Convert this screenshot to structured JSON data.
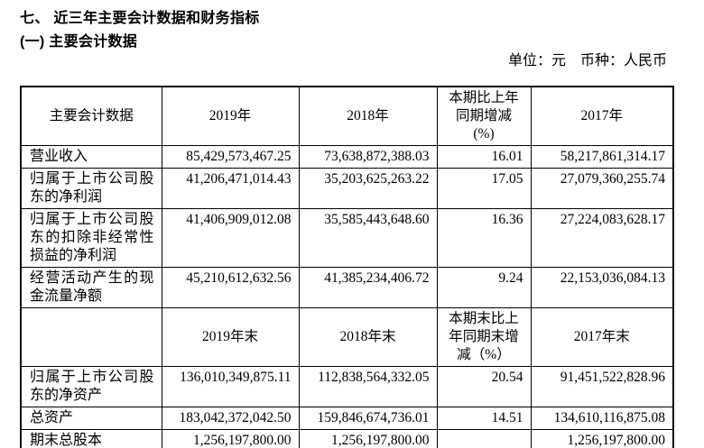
{
  "page": {
    "title": "七、 近三年主要会计数据和财务指标",
    "subtitle": "(一) 主要会计数据",
    "unit_note": "单位：元　币种：人民币"
  },
  "table": {
    "sections": [
      {
        "header": [
          "主要会计数据",
          "2019年",
          "2018年",
          "本期比上年\n同期增减\n(%)",
          "2017年"
        ],
        "rows": [
          [
            "营业收入",
            "85,429,573,467.25",
            "73,638,872,388.03",
            "16.01",
            "58,217,861,314.17"
          ],
          [
            "归属于上市公司股东的净利润",
            "41,206,471,014.43",
            "35,203,625,263.22",
            "17.05",
            "27,079,360,255.74"
          ],
          [
            "归属于上市公司股东的扣除非经常性损益的净利润",
            "41,406,909,012.08",
            "35,585,443,648.60",
            "16.36",
            "27,224,083,628.17"
          ],
          [
            "经营活动产生的现金流量净额",
            "45,210,612,632.56",
            "41,385,234,406.72",
            "9.24",
            "22,153,036,084.13"
          ]
        ]
      },
      {
        "header": [
          "",
          "2019年末",
          "2018年末",
          "本期末比上\n年同期末增\n减（%）",
          "2017年末"
        ],
        "rows": [
          [
            "归属于上市公司股东的净资产",
            "136,010,349,875.11",
            "112,838,564,332.05",
            "20.54",
            "91,451,522,828.96"
          ],
          [
            "总资产",
            "183,042,372,042.50",
            "159,846,674,736.01",
            "14.51",
            "134,610,116,875.08"
          ],
          [
            "期末总股本",
            "1,256,197,800.00",
            "1,256,197,800.00",
            "",
            "1,256,197,800.00"
          ]
        ]
      }
    ]
  }
}
